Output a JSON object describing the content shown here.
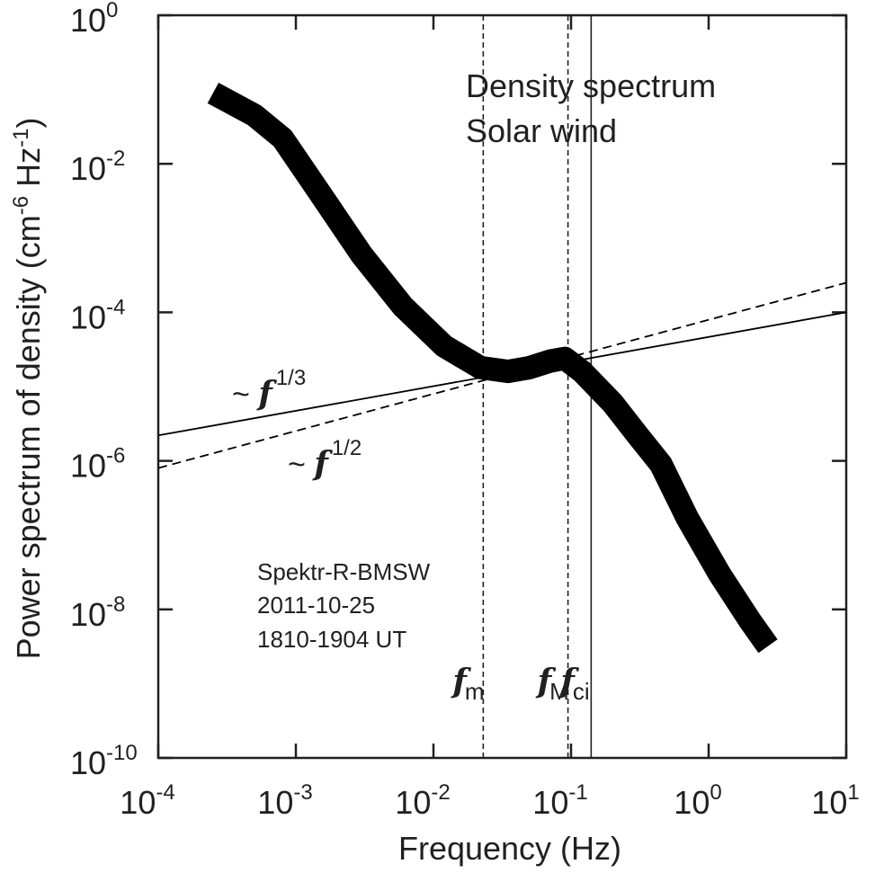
{
  "chart_data": {
    "type": "line",
    "xscale": "log",
    "yscale": "log",
    "xlim": [
      0.0001,
      10
    ],
    "ylim": [
      1e-10,
      1
    ],
    "xlabel": "Frequency  (Hz)",
    "ylabel": "Power spectrum of density (cm-6 Hz-1)",
    "ylabel_parts": {
      "main": "Power spectrum of density (cm",
      "exp1": "-6",
      "mid": " Hz",
      "exp2": "-1",
      "end": ")"
    },
    "x_ticks": [
      {
        "base": "10",
        "exp": "-4",
        "value": 0.0001
      },
      {
        "base": "10",
        "exp": "-3",
        "value": 0.001
      },
      {
        "base": "10",
        "exp": "-2",
        "value": 0.01
      },
      {
        "base": "10",
        "exp": "-1",
        "value": 0.1
      },
      {
        "base": "10",
        "exp": "0",
        "value": 1
      },
      {
        "base": "10",
        "exp": "1",
        "value": 10
      }
    ],
    "y_ticks": [
      {
        "base": "10",
        "exp": "0",
        "value": 1
      },
      {
        "base": "10",
        "exp": "-2",
        "value": 0.01
      },
      {
        "base": "10",
        "exp": "-4",
        "value": 0.0001
      },
      {
        "base": "10",
        "exp": "-6",
        "value": 1e-06
      },
      {
        "base": "10",
        "exp": "-8",
        "value": 1e-08
      },
      {
        "base": "10",
        "exp": "-10",
        "value": 1e-10
      }
    ],
    "annotation_title": [
      "Density spectrum",
      "Solar wind"
    ],
    "info_text": [
      "Spektr-R-BMSW",
      "2011-10-25",
      "1810-1904 UT"
    ],
    "series": [
      {
        "style": "thick-solid",
        "color": "#000000",
        "points": [
          [
            0.00025,
            0.09
          ],
          [
            0.0005,
            0.045
          ],
          [
            0.0008,
            0.022
          ],
          [
            0.0015,
            0.004
          ],
          [
            0.003,
            0.0006
          ],
          [
            0.006,
            0.00012
          ],
          [
            0.012,
            3.5e-05
          ],
          [
            0.022,
            1.8e-05
          ],
          [
            0.035,
            1.6e-05
          ],
          [
            0.05,
            1.8e-05
          ],
          [
            0.07,
            2.2e-05
          ],
          [
            0.09,
            2.4e-05
          ],
          [
            0.12,
            1.6e-05
          ],
          [
            0.2,
            6e-06
          ],
          [
            0.3,
            2.3e-06
          ],
          [
            0.45,
            9e-07
          ],
          [
            0.7,
            1.7e-07
          ],
          [
            1.2,
            3e-08
          ],
          [
            2.0,
            7e-09
          ],
          [
            2.7,
            3.2e-09
          ]
        ]
      },
      {
        "name": "~ f 1/3",
        "style": "thin-solid",
        "color": "#000000",
        "slope": 0.333,
        "points": [
          [
            0.0001,
            2.2e-06
          ],
          [
            10,
            0.0001
          ]
        ]
      },
      {
        "name": "~ f 1/2",
        "style": "dashed",
        "color": "#000000",
        "slope": 0.5,
        "points": [
          [
            0.0001,
            8e-07
          ],
          [
            10,
            0.00025
          ]
        ]
      }
    ],
    "power_law_labels": [
      {
        "prefix": "~ ",
        "f": "f",
        "exp": "1/3"
      },
      {
        "prefix": "~ ",
        "f": "f",
        "exp": "1/2"
      }
    ],
    "vertical_lines": [
      {
        "x": 0.023,
        "style": "dashed",
        "f": "f",
        "sub": "m"
      },
      {
        "x": 0.095,
        "style": "dashed",
        "f": "f",
        "sub": "M"
      },
      {
        "x": 0.14,
        "style": "solid",
        "f": "f",
        "sub": "ci"
      }
    ],
    "grid": false,
    "legend": "none"
  }
}
